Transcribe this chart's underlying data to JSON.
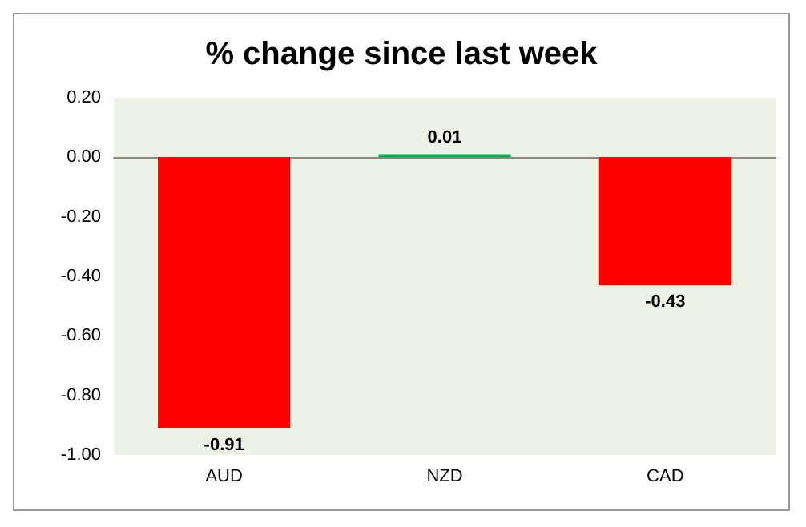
{
  "chart_data": {
    "type": "bar",
    "title": "% change since last week",
    "categories": [
      "AUD",
      "NZD",
      "CAD"
    ],
    "values": [
      -0.91,
      0.01,
      -0.43
    ],
    "colors": [
      "#ff0000",
      "#00b050",
      "#ff0000"
    ],
    "data_labels": true,
    "ylim": [
      -1.0,
      0.2
    ],
    "yticks": [
      {
        "value": -1.0,
        "label": "-1.00"
      },
      {
        "value": -0.8,
        "label": "-0.80"
      },
      {
        "value": -0.6,
        "label": "-0.60"
      },
      {
        "value": -0.4,
        "label": "-0.40"
      },
      {
        "value": -0.2,
        "label": "-0.20"
      },
      {
        "value": 0,
        "label": "0.00"
      },
      {
        "value": 0.2,
        "label": "0.20"
      }
    ],
    "tick_labels": true
  }
}
